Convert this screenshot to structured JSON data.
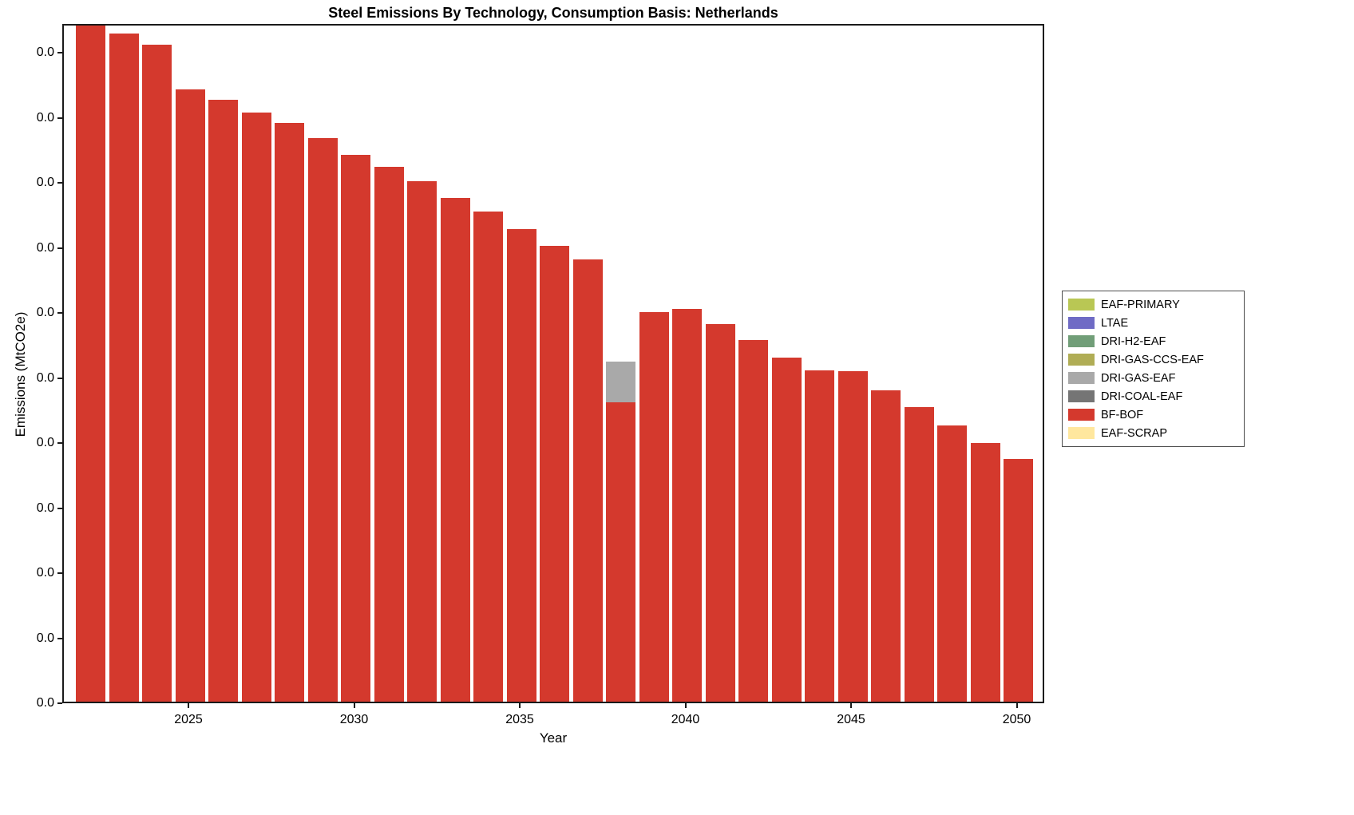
{
  "title": "Steel Emissions By Technology, Consumption Basis: Netherlands",
  "chart_data": {
    "type": "bar",
    "stacked": true,
    "title": "Steel Emissions By Technology, Consumption Basis: Netherlands",
    "xlabel": "Year",
    "ylabel": "Emissions (MtCO2e)",
    "grid": false,
    "legend_position": "right-outside",
    "x": [
      2022,
      2023,
      2024,
      2025,
      2026,
      2027,
      2028,
      2029,
      2030,
      2031,
      2032,
      2033,
      2034,
      2035,
      2036,
      2037,
      2038,
      2039,
      2040,
      2041,
      2042,
      2043,
      2044,
      2045,
      2046,
      2047,
      2048,
      2049,
      2050
    ],
    "x_tick_years": [
      2025,
      2030,
      2035,
      2040,
      2045,
      2050
    ],
    "x_tick_labels": [
      "2025",
      "2030",
      "2035",
      "2040",
      "2045",
      "2050"
    ],
    "y_tick_labels": [
      "0.0",
      "0.0",
      "0.0",
      "0.0",
      "0.0",
      "0.0",
      "0.0",
      "0.0",
      "0.0",
      "0.0",
      "0.0"
    ],
    "ylim": [
      0,
      1.0
    ],
    "units_note": "All visible y-axis tick labels display 0.0; series values are normalized so the axis top equals 1.0 (estimated from pixel heights).",
    "series": [
      {
        "name": "EAF-PRIMARY",
        "color": "#b9c754",
        "values": [
          0,
          0,
          0,
          0,
          0,
          0,
          0,
          0,
          0,
          0,
          0,
          0,
          0,
          0,
          0,
          0,
          0,
          0,
          0,
          0,
          0,
          0,
          0,
          0,
          0,
          0,
          0,
          0,
          0
        ]
      },
      {
        "name": "LTAE",
        "color": "#6f6bc5",
        "values": [
          0,
          0,
          0,
          0,
          0,
          0,
          0,
          0,
          0,
          0,
          0,
          0,
          0,
          0,
          0,
          0,
          0,
          0,
          0,
          0,
          0,
          0,
          0,
          0,
          0,
          0,
          0,
          0,
          0
        ]
      },
      {
        "name": "DRI-H2-EAF",
        "color": "#719e78",
        "values": [
          0,
          0,
          0,
          0,
          0,
          0,
          0,
          0,
          0,
          0,
          0,
          0,
          0,
          0,
          0,
          0,
          0,
          0,
          0,
          0,
          0,
          0,
          0,
          0,
          0,
          0,
          0,
          0,
          0
        ]
      },
      {
        "name": "DRI-GAS-CCS-EAF",
        "color": "#b0ad55",
        "values": [
          0,
          0,
          0,
          0,
          0,
          0,
          0,
          0,
          0,
          0,
          0,
          0,
          0,
          0,
          0,
          0,
          0,
          0,
          0,
          0,
          0,
          0,
          0,
          0,
          0,
          0,
          0,
          0,
          0
        ]
      },
      {
        "name": "DRI-GAS-EAF",
        "color": "#a9a9a9",
        "values": [
          0,
          0,
          0,
          0,
          0,
          0,
          0,
          0,
          0,
          0,
          0,
          0,
          0,
          0,
          0,
          0,
          0.06,
          0,
          0,
          0,
          0,
          0,
          0,
          0,
          0,
          0,
          0,
          0,
          0
        ]
      },
      {
        "name": "DRI-COAL-EAF",
        "color": "#757575",
        "values": [
          0,
          0,
          0,
          0,
          0,
          0,
          0,
          0,
          0,
          0,
          0,
          0,
          0,
          0,
          0,
          0,
          0,
          0,
          0,
          0,
          0,
          0,
          0,
          0,
          0,
          0,
          0,
          0,
          0
        ]
      },
      {
        "name": "BF-BOF",
        "color": "#d4392d",
        "values": [
          1.0,
          0.983,
          0.967,
          0.901,
          0.886,
          0.867,
          0.852,
          0.83,
          0.805,
          0.787,
          0.766,
          0.741,
          0.721,
          0.696,
          0.671,
          0.651,
          0.441,
          0.573,
          0.578,
          0.556,
          0.532,
          0.506,
          0.488,
          0.486,
          0.458,
          0.434,
          0.407,
          0.381,
          0.357
        ]
      },
      {
        "name": "EAF-SCRAP",
        "color": "#ffe79e",
        "values": [
          0,
          0,
          0,
          0,
          0,
          0,
          0,
          0,
          0,
          0,
          0,
          0,
          0,
          0,
          0,
          0,
          0,
          0,
          0,
          0,
          0,
          0,
          0,
          0,
          0,
          0,
          0,
          0,
          0
        ]
      }
    ]
  }
}
